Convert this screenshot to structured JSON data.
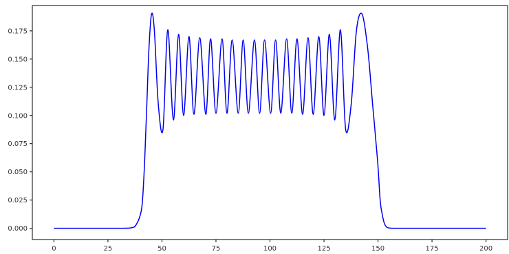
{
  "chart_data": {
    "type": "line",
    "title": "",
    "xlabel": "",
    "ylabel": "",
    "xlim": [
      -10,
      210
    ],
    "ylim": [
      -0.01,
      0.1975
    ],
    "grid": false,
    "xticks": [
      0,
      25,
      50,
      75,
      100,
      125,
      150,
      175,
      200
    ],
    "xtick_labels": [
      "0",
      "25",
      "50",
      "75",
      "100",
      "125",
      "150",
      "175",
      "200"
    ],
    "yticks": [
      0.0,
      0.025,
      0.05,
      0.075,
      0.1,
      0.125,
      0.15,
      0.175
    ],
    "ytick_labels": [
      "0.000",
      "0.025",
      "0.050",
      "0.075",
      "0.100",
      "0.125",
      "0.150",
      "0.175"
    ],
    "series": [
      {
        "color": "#0000ee",
        "x": [
          0,
          30,
          36,
          38,
          40,
          41,
          42,
          43,
          44,
          45.2,
          46.5,
          48.3,
          50.5,
          52.7,
          55.3,
          57.7,
          60,
          62.5,
          64.8,
          67.5,
          70.3,
          72.5,
          75,
          77.8,
          80.1,
          82.5,
          85.3,
          87.6,
          90,
          92.8,
          95.2,
          97.5,
          100.3,
          102.6,
          105,
          107.7,
          110.1,
          112.5,
          115.1,
          117.6,
          120,
          122.6,
          125,
          127.5,
          130,
          132.6,
          135,
          137.6,
          140,
          142.6,
          145.2,
          147.5,
          149.8,
          151,
          152,
          153,
          154,
          155,
          156,
          157,
          158,
          160,
          165,
          200
        ],
        "y": [
          0,
          0,
          0.0005,
          0.003,
          0.012,
          0.025,
          0.06,
          0.11,
          0.16,
          0.19,
          0.175,
          0.11,
          0.088,
          0.176,
          0.096,
          0.172,
          0.1,
          0.17,
          0.101,
          0.169,
          0.101,
          0.168,
          0.102,
          0.168,
          0.102,
          0.167,
          0.102,
          0.167,
          0.102,
          0.167,
          0.102,
          0.167,
          0.102,
          0.167,
          0.102,
          0.168,
          0.102,
          0.168,
          0.101,
          0.169,
          0.101,
          0.17,
          0.1,
          0.172,
          0.096,
          0.176,
          0.088,
          0.11,
          0.175,
          0.19,
          0.16,
          0.11,
          0.06,
          0.025,
          0.012,
          0.004,
          0.001,
          0.0003,
          0.0001,
          0,
          0,
          0,
          0,
          0
        ]
      }
    ]
  }
}
